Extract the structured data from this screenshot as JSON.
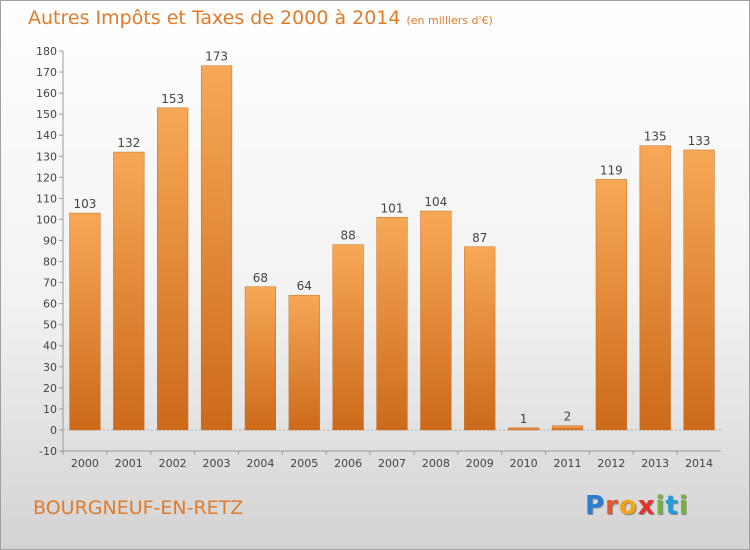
{
  "header": {
    "title": "Autres Impôts et Taxes de 2000 à 2014",
    "unit": "(en milliers d'€)"
  },
  "footer": {
    "town": "BOURGNEUF-EN-RETZ",
    "logo_letters": [
      "P",
      "r",
      "o",
      "x",
      "i",
      "t",
      "i"
    ],
    "logo_colors": [
      "#2a7fd4",
      "#e8552a",
      "#f2a21d",
      "#e2342c",
      "#6fb63a",
      "#2a9ad4",
      "#6fb63a"
    ]
  },
  "chart_data": {
    "type": "bar",
    "categories": [
      "2000",
      "2001",
      "2002",
      "2003",
      "2004",
      "2005",
      "2006",
      "2007",
      "2008",
      "2009",
      "2010",
      "2011",
      "2012",
      "2013",
      "2014"
    ],
    "values": [
      103,
      132,
      153,
      173,
      68,
      64,
      88,
      101,
      104,
      87,
      1,
      2,
      119,
      135,
      133
    ],
    "ylim": [
      -10,
      180
    ],
    "yticks": [
      -10,
      0,
      10,
      20,
      30,
      40,
      50,
      60,
      70,
      80,
      90,
      100,
      110,
      120,
      130,
      140,
      150,
      160,
      170,
      180
    ],
    "grid": false,
    "bar_color": "#f09a45"
  }
}
